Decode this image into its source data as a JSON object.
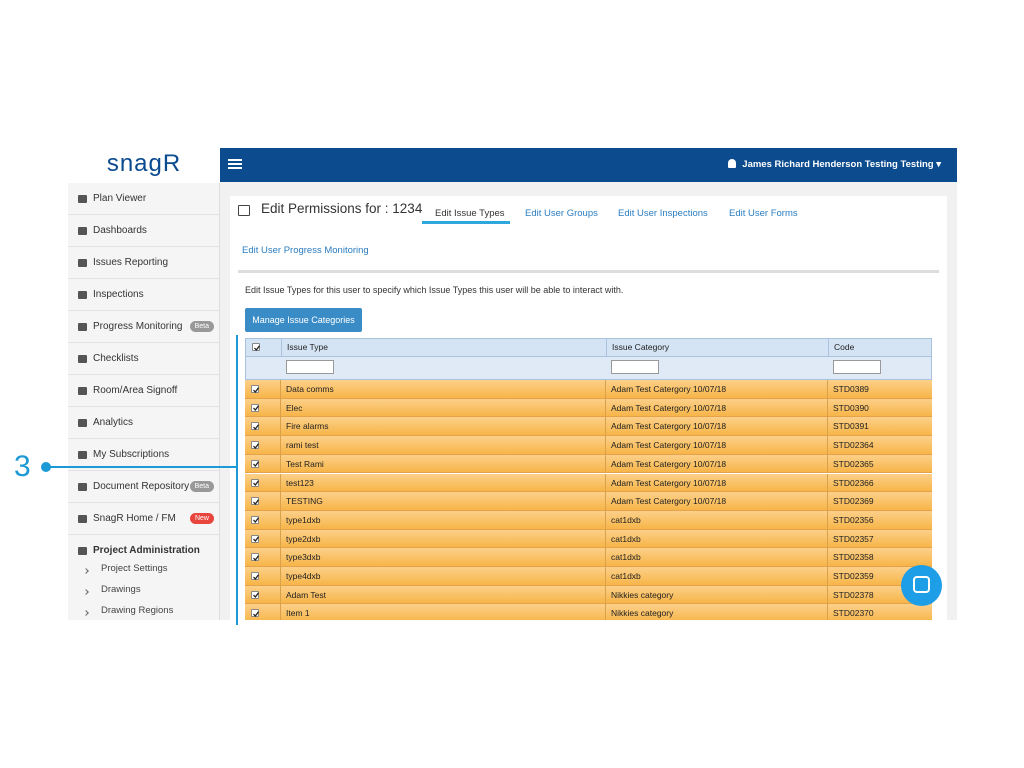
{
  "sidebar": {
    "logo": "snagR",
    "items": [
      {
        "label": "Plan Viewer"
      },
      {
        "label": "Dashboards"
      },
      {
        "label": "Issues Reporting"
      },
      {
        "label": "Inspections"
      },
      {
        "label": "Progress Monitoring",
        "badge": "Beta"
      },
      {
        "label": "Checklists"
      },
      {
        "label": "Room/Area Signoff"
      },
      {
        "label": "Analytics"
      },
      {
        "label": "My Subscriptions"
      },
      {
        "label": "Document Repository",
        "badge": "Beta"
      },
      {
        "label": "SnagR Home / FM",
        "badge": "New"
      },
      {
        "label": "Project Administration"
      }
    ],
    "sub_items": [
      "Project Settings",
      "Drawings",
      "Drawing Regions"
    ]
  },
  "header": {
    "user": "James Richard Henderson Testing Testing"
  },
  "panel": {
    "title": "Edit Permissions for : 1234",
    "tabs": [
      "Edit Issue Types",
      "Edit User Groups",
      "Edit User Inspections",
      "Edit User Forms",
      "Edit User Progress Monitoring"
    ],
    "description": "Edit Issue Types for this user to specify which Issue Types this user will be able to interact with.",
    "button": "Manage Issue Categories"
  },
  "table": {
    "columns": [
      "Issue Type",
      "Issue Category",
      "Code"
    ],
    "rows": [
      [
        "Data comms",
        "Adam Test Catergory 10/07/18",
        "STD0389"
      ],
      [
        "Elec",
        "Adam Test Catergory 10/07/18",
        "STD0390"
      ],
      [
        "Fire alarms",
        "Adam Test Catergory 10/07/18",
        "STD0391"
      ],
      [
        "rami test",
        "Adam Test Catergory 10/07/18",
        "STD02364"
      ],
      [
        "Test Rami",
        "Adam Test Catergory 10/07/18",
        "STD02365"
      ],
      [
        "test123",
        "Adam Test Catergory 10/07/18",
        "STD02366"
      ],
      [
        "TESTING",
        "Adam Test Catergory 10/07/18",
        "STD02369"
      ],
      [
        "type1dxb",
        "cat1dxb",
        "STD02356"
      ],
      [
        "type2dxb",
        "cat1dxb",
        "STD02357"
      ],
      [
        "type3dxb",
        "cat1dxb",
        "STD02358"
      ],
      [
        "type4dxb",
        "cat1dxb",
        "STD02359"
      ],
      [
        "Adam Test",
        "Nikkies category",
        "STD02378"
      ],
      [
        "Item 1",
        "Nikkies category",
        "STD02370"
      ]
    ]
  },
  "annotation": {
    "label": "3"
  }
}
